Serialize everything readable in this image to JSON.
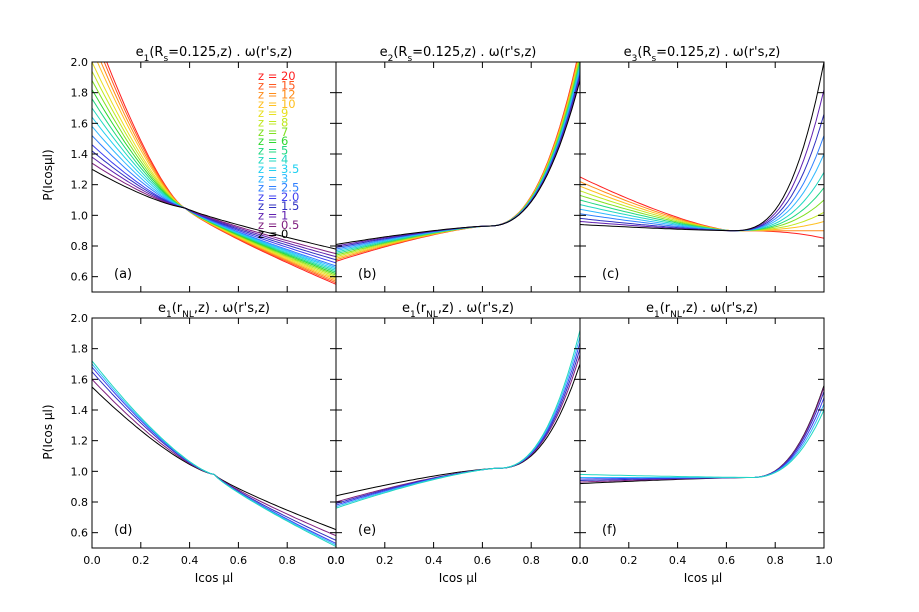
{
  "figure": {
    "ylabel_top": "P(Icosμl)",
    "ylabel_bottom": "P(Icos μl)",
    "xlabel": "Icos μl"
  },
  "chart_data": {
    "type": "line",
    "x_ticks": [
      "0.0",
      "0.2",
      "0.4",
      "0.6",
      "0.8",
      "0.0"
    ],
    "x_ticks_last_col": [
      "0.0",
      "0.2",
      "0.4",
      "0.6",
      "0.8",
      "1.0"
    ],
    "xlim": [
      0,
      1
    ],
    "y_ticks_top": [
      "0.6",
      "0.8",
      "1.0",
      "1.2",
      "1.4",
      "1.6",
      "1.8",
      "2.0"
    ],
    "y_ticks_bottom": [
      "0.6",
      "0.8",
      "1.0",
      "1.2",
      "1.4",
      "1.6",
      "1.8",
      "2.0"
    ],
    "ylim": [
      0.5,
      2.0
    ],
    "legend": {
      "panel": "a",
      "entries": [
        {
          "label": "z = 20",
          "color": "#ff2020"
        },
        {
          "label": "z = 15",
          "color": "#ff5a20"
        },
        {
          "label": "z = 12",
          "color": "#ff8c1a"
        },
        {
          "label": "z = 10",
          "color": "#ffc020"
        },
        {
          "label": "z = 9",
          "color": "#e8e020"
        },
        {
          "label": "z = 8",
          "color": "#c0e820"
        },
        {
          "label": "z = 7",
          "color": "#80e020"
        },
        {
          "label": "z = 6",
          "color": "#30d830"
        },
        {
          "label": "z = 5",
          "color": "#20d880"
        },
        {
          "label": "z = 4",
          "color": "#20d8c0"
        },
        {
          "label": "z = 3.5",
          "color": "#20d0f0"
        },
        {
          "label": "z = 3",
          "color": "#30b8ff"
        },
        {
          "label": "z = 2.5",
          "color": "#3080ff"
        },
        {
          "label": "z = 2.0",
          "color": "#4040f0"
        },
        {
          "label": "z = 1.5",
          "color": "#3030c0"
        },
        {
          "label": "z = 1",
          "color": "#6020b0"
        },
        {
          "label": "z = 0.5",
          "color": "#802080"
        },
        {
          "label": "z = 0",
          "color": "#000000"
        }
      ]
    },
    "panels": [
      {
        "id": "a",
        "tag": "(a)",
        "title_main": "e",
        "title_sub": "1",
        "title_args": "(R",
        "title_args_sub": "s",
        "title_rest": "=0.125,z) . ω(r's,z)",
        "series_start": [
          2.25,
          2.2,
          2.14,
          2.08,
          2.0,
          1.94,
          1.88,
          1.82,
          1.76,
          1.7,
          1.64,
          1.58,
          1.52,
          1.46,
          1.42,
          1.38,
          1.34,
          1.3
        ],
        "series_end": [
          0.55,
          0.56,
          0.57,
          0.58,
          0.59,
          0.6,
          0.61,
          0.62,
          0.63,
          0.64,
          0.65,
          0.66,
          0.67,
          0.69,
          0.71,
          0.73,
          0.75,
          0.78
        ],
        "cross": 0.38,
        "crossval": 1.05
      },
      {
        "id": "b",
        "tag": "(b)",
        "title_main": "e",
        "title_sub": "2",
        "title_args": "(R",
        "title_args_sub": "s",
        "title_rest": "=0.125,z) . ω(r's,z)",
        "series_start": [
          0.7,
          0.71,
          0.72,
          0.73,
          0.74,
          0.75,
          0.76,
          0.77,
          0.78,
          0.79,
          0.8,
          0.81
        ],
        "series_end": [
          2.1,
          2.08,
          2.06,
          2.04,
          2.02,
          2.0,
          1.98,
          1.96,
          1.94,
          1.92,
          1.9,
          1.88
        ],
        "cross": 0.62,
        "crossval": 0.93
      },
      {
        "id": "c",
        "tag": "(c)",
        "title_main": "e",
        "title_sub": "3",
        "title_args": "(R",
        "title_args_sub": "s",
        "title_rest": "=0.125,z) . ω(r's,z)",
        "series_start": [
          1.25,
          1.22,
          1.19,
          1.16,
          1.13,
          1.1,
          1.07,
          1.04,
          1.01,
          0.98,
          0.96,
          0.94
        ],
        "series_end": [
          0.85,
          0.9,
          0.96,
          1.02,
          1.1,
          1.18,
          1.28,
          1.4,
          1.52,
          1.66,
          1.82,
          2.0
        ],
        "cross": 0.62,
        "crossval": 0.9
      },
      {
        "id": "d",
        "tag": "(d)",
        "title_main": "e",
        "title_sub": "1",
        "title_args": "(r",
        "title_args_sub": "NL",
        "title_rest": ",z) . ω(r's,z)",
        "series_start": [
          1.55,
          1.6,
          1.65,
          1.68,
          1.7,
          1.72
        ],
        "series_end": [
          0.62,
          0.58,
          0.55,
          0.53,
          0.52,
          0.51
        ],
        "cross": 0.5,
        "crossval": 0.98
      },
      {
        "id": "e",
        "tag": "(e)",
        "title_main": "e",
        "title_sub": "1",
        "title_args": "(r",
        "title_args_sub": "NL",
        "title_rest": ",z) . ω(r's,z)",
        "series_start": [
          0.84,
          0.8,
          0.79,
          0.78,
          0.77,
          0.76
        ],
        "series_end": [
          1.7,
          1.76,
          1.8,
          1.84,
          1.88,
          1.92
        ],
        "cross": 0.66,
        "crossval": 1.02
      },
      {
        "id": "f",
        "tag": "(f)",
        "title_main": "e",
        "title_sub": "1",
        "title_args": "(r",
        "title_args_sub": "NL",
        "title_rest": ",z) . ω(r's,z)",
        "series_start": [
          0.92,
          0.93,
          0.94,
          0.95,
          0.96,
          0.98
        ],
        "series_end": [
          1.56,
          1.55,
          1.52,
          1.48,
          1.44,
          1.4
        ],
        "cross": 0.7,
        "crossval": 0.96
      }
    ],
    "bottom_colors": [
      "#000000",
      "#802080",
      "#3030c0",
      "#4040f0",
      "#30b8ff",
      "#20d8c0"
    ]
  }
}
